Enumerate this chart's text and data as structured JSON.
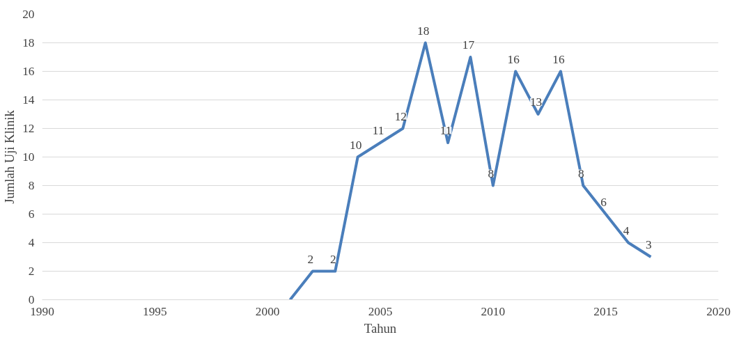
{
  "chart_data": {
    "type": "line",
    "xlabel": "Tahun",
    "ylabel": "Jumlah Uji Klinik",
    "x": [
      2001,
      2002,
      2003,
      2004,
      2005,
      2006,
      2007,
      2008,
      2009,
      2010,
      2011,
      2012,
      2013,
      2014,
      2015,
      2016,
      2017
    ],
    "series": [
      {
        "color": "#4a7ebb",
        "values": [
          0,
          2,
          2,
          10,
          11,
          12,
          18,
          11,
          17,
          8,
          16,
          13,
          16,
          8,
          6,
          4,
          3
        ],
        "value_labels": [
          null,
          "2",
          "2",
          "10",
          "11",
          "12",
          "18",
          "11",
          "17",
          "8",
          "16",
          "13",
          "16",
          "8",
          "6",
          "4",
          "3"
        ]
      }
    ],
    "xlim": [
      1990,
      2020
    ],
    "xticks": [
      1990,
      1995,
      2000,
      2005,
      2010,
      2015,
      2020
    ],
    "ylim": [
      0,
      20
    ],
    "yticks": [
      0,
      2,
      4,
      6,
      8,
      10,
      12,
      14,
      16,
      18,
      20
    ],
    "grid": "y",
    "marker": "none",
    "line_style": "solid"
  }
}
